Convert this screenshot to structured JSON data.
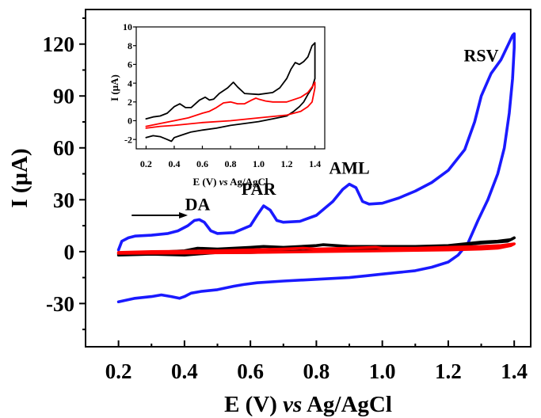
{
  "chart_data": [
    {
      "type": "line",
      "title": "",
      "xlabel": "E (V) vs Ag/AgCl",
      "ylabel": "I (μA)",
      "xlabel_parts": [
        "E (V) ",
        "vs",
        " Ag/AgCl"
      ],
      "ylabel_parts": [
        "I (",
        "μA",
        ")"
      ],
      "xlim": [
        0.1,
        1.45
      ],
      "ylim": [
        -55,
        140
      ],
      "xticks": [
        0.2,
        0.4,
        0.6,
        0.8,
        1.0,
        1.2,
        1.4
      ],
      "xtick_labels": [
        "0.2",
        "0.4",
        "0.6",
        "0.8",
        "1.0",
        "1.2",
        "1.4"
      ],
      "yticks": [
        -30,
        0,
        30,
        60,
        90,
        120
      ],
      "ytick_labels": [
        "-30",
        "0",
        "30",
        "60",
        "90",
        "120"
      ],
      "grid": false,
      "annotations": [
        {
          "text": "DA",
          "x": 0.44,
          "y": 24
        },
        {
          "text": "PAR",
          "x": 0.625,
          "y": 33
        },
        {
          "text": "AML",
          "x": 0.9,
          "y": 45
        },
        {
          "text": "RSV",
          "x": 1.3,
          "y": 110
        }
      ],
      "arrow": {
        "x_from": 0.24,
        "x_to": 0.41,
        "y": 21
      },
      "series": [
        {
          "color": "#1a1aff",
          "x": [
            0.2,
            0.21,
            0.23,
            0.25,
            0.3,
            0.35,
            0.38,
            0.41,
            0.43,
            0.445,
            0.46,
            0.48,
            0.5,
            0.55,
            0.6,
            0.62,
            0.64,
            0.66,
            0.68,
            0.7,
            0.75,
            0.8,
            0.85,
            0.88,
            0.9,
            0.92,
            0.94,
            0.96,
            1.0,
            1.05,
            1.1,
            1.15,
            1.2,
            1.25,
            1.28,
            1.3,
            1.33,
            1.36,
            1.38,
            1.395,
            1.4,
            1.4,
            1.395,
            1.385,
            1.37,
            1.35,
            1.32,
            1.29,
            1.26,
            1.23,
            1.2,
            1.15,
            1.1,
            1.05,
            1.0,
            0.95,
            0.9,
            0.8,
            0.7,
            0.62,
            0.58,
            0.55,
            0.5,
            0.45,
            0.42,
            0.4,
            0.385,
            0.36,
            0.33,
            0.3,
            0.25,
            0.2
          ],
          "y": [
            1,
            6,
            8,
            9,
            9.5,
            10.5,
            12,
            15,
            18,
            18.5,
            17,
            12,
            10.5,
            11,
            15,
            21,
            26.5,
            24,
            18,
            17,
            17.5,
            21,
            29,
            36,
            39,
            37,
            29,
            27.5,
            28,
            31,
            35,
            40,
            47,
            59,
            75,
            90,
            103,
            111,
            119,
            125,
            126,
            118,
            100,
            80,
            60,
            45,
            30,
            18,
            5,
            -2,
            -6,
            -9,
            -11,
            -12,
            -13,
            -14,
            -15,
            -16,
            -17,
            -18,
            -19,
            -20,
            -22,
            -23,
            -24,
            -26,
            -27,
            -26,
            -25,
            -26,
            -27,
            -29
          ]
        },
        {
          "color": "#000000",
          "x": [
            0.2,
            0.3,
            0.4,
            0.44,
            0.5,
            0.6,
            0.64,
            0.7,
            0.8,
            0.82,
            0.9,
            1.0,
            1.1,
            1.2,
            1.3,
            1.35,
            1.39,
            1.4,
            1.38,
            1.3,
            1.25,
            1.2,
            1.1,
            1.0,
            0.9,
            0.8,
            0.7,
            0.6,
            0.5,
            0.4,
            0.3,
            0.2
          ],
          "y": [
            -1,
            -0.5,
            0.5,
            2,
            1.5,
            2.5,
            3,
            2.5,
            3.5,
            4,
            3,
            3,
            3,
            3.5,
            5.5,
            6,
            7,
            8,
            6,
            5,
            4,
            2,
            2,
            1.5,
            1,
            0.5,
            0,
            -0.5,
            -0.5,
            -2,
            -1.5,
            -2
          ]
        },
        {
          "color": "#ff0000",
          "x": [
            0.2,
            0.3,
            0.4,
            0.5,
            0.6,
            0.7,
            0.76,
            0.8,
            0.9,
            0.98,
            1.0,
            1.1,
            1.2,
            1.3,
            1.36,
            1.4,
            1.39,
            1.35,
            1.3,
            1.2,
            1.0,
            0.8,
            0.6,
            0.4,
            0.2
          ],
          "y": [
            -0.5,
            0,
            0.2,
            0.5,
            1,
            1.5,
            2,
            1.5,
            2,
            2.5,
            2,
            2,
            2.5,
            3,
            3.5,
            4.5,
            3.5,
            2,
            1.5,
            1,
            0.5,
            0,
            -0.5,
            -0.8,
            -1
          ]
        }
      ]
    },
    {
      "type": "line",
      "title": "",
      "inset": true,
      "xlabel": "E (V) vs Ag/AgCl",
      "ylabel": "I (μA)",
      "xlabel_parts": [
        "E (V) ",
        "vs",
        " Ag/AgCl"
      ],
      "ylabel_parts": [
        "I (",
        "μA",
        ")"
      ],
      "xlim": [
        0.13,
        1.47
      ],
      "ylim": [
        -3,
        10
      ],
      "xticks": [
        0.2,
        0.4,
        0.6,
        0.8,
        1.0,
        1.2,
        1.4
      ],
      "xtick_labels": [
        "0.2",
        "0.4",
        "0.6",
        "0.8",
        "1.0",
        "1.2",
        "1.4"
      ],
      "yticks": [
        -2,
        0,
        2,
        4,
        6,
        8,
        10
      ],
      "ytick_labels": [
        "-2",
        "0",
        "2",
        "4",
        "6",
        "8",
        "10"
      ],
      "grid": false,
      "series": [
        {
          "color": "#000000",
          "x": [
            0.2,
            0.25,
            0.3,
            0.35,
            0.4,
            0.44,
            0.48,
            0.52,
            0.58,
            0.62,
            0.65,
            0.68,
            0.72,
            0.78,
            0.82,
            0.85,
            0.9,
            1.0,
            1.1,
            1.15,
            1.2,
            1.23,
            1.26,
            1.29,
            1.32,
            1.35,
            1.38,
            1.4,
            1.4,
            1.38,
            1.35,
            1.32,
            1.29,
            1.25,
            1.2,
            1.1,
            1.0,
            0.9,
            0.8,
            0.7,
            0.6,
            0.52,
            0.48,
            0.44,
            0.4,
            0.38,
            0.35,
            0.3,
            0.25,
            0.2
          ],
          "y": [
            0.2,
            0.4,
            0.5,
            0.8,
            1.5,
            1.8,
            1.4,
            1.4,
            2.2,
            2.5,
            2.2,
            2.3,
            2.9,
            3.5,
            4.1,
            3.6,
            2.9,
            2.8,
            3.0,
            3.5,
            4.5,
            5.5,
            6.2,
            6.0,
            6.3,
            6.8,
            8.0,
            8.3,
            4.5,
            3.5,
            2.8,
            2.0,
            1.5,
            1.0,
            0.5,
            0.2,
            -0.1,
            -0.3,
            -0.5,
            -0.8,
            -1.0,
            -1.2,
            -1.4,
            -1.6,
            -1.8,
            -2.2,
            -2.0,
            -1.7,
            -1.6,
            -1.8
          ]
        },
        {
          "color": "#ff0000",
          "x": [
            0.2,
            0.3,
            0.4,
            0.5,
            0.6,
            0.65,
            0.7,
            0.75,
            0.8,
            0.85,
            0.9,
            0.95,
            0.98,
            1.0,
            1.05,
            1.1,
            1.2,
            1.3,
            1.35,
            1.38,
            1.4,
            1.4,
            1.38,
            1.35,
            1.3,
            1.2,
            1.0,
            0.8,
            0.6,
            0.4,
            0.3,
            0.2
          ],
          "y": [
            -0.6,
            -0.3,
            0.0,
            0.3,
            0.8,
            1.0,
            1.4,
            1.9,
            2.0,
            1.8,
            1.8,
            2.2,
            2.4,
            2.3,
            2.1,
            2.0,
            2.0,
            2.5,
            3.0,
            3.6,
            4.1,
            3.5,
            2.0,
            1.5,
            1.0,
            0.6,
            0.3,
            0.0,
            -0.2,
            -0.5,
            -0.6,
            -0.8
          ]
        }
      ]
    }
  ]
}
